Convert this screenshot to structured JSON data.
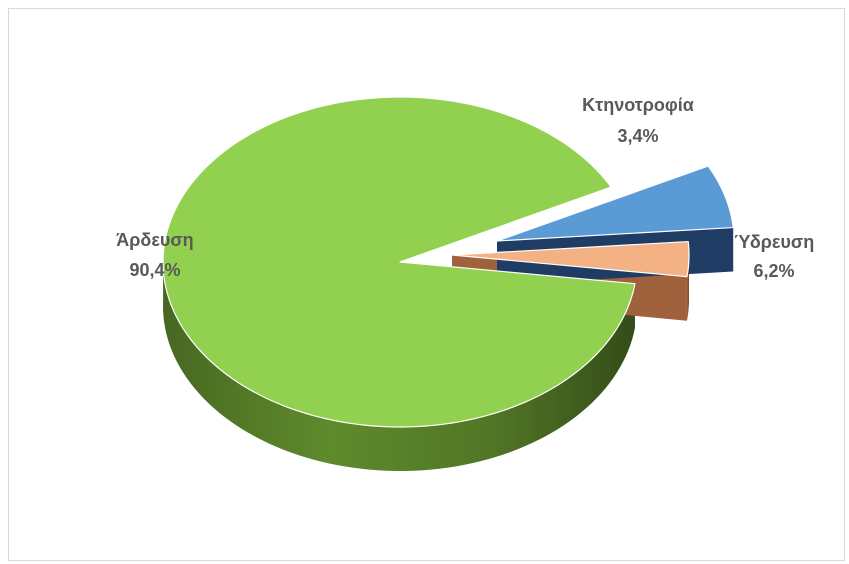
{
  "chart_data": {
    "type": "pie",
    "style": "3d-exploded",
    "slices": [
      {
        "label": "Άρδευση",
        "value": 90.4,
        "value_text": "90,4%",
        "color": "#92d050",
        "side_color": "#5f8a2c"
      },
      {
        "label": "Κτηνοτροφία",
        "value": 3.4,
        "value_text": "3,4%",
        "color": "#f4b183",
        "side_color": "#a0623c"
      },
      {
        "label": "Ύδρευση",
        "value": 6.2,
        "value_text": "6,2%",
        "color": "#5b9bd5",
        "side_color": "#1f3d64"
      }
    ],
    "legend": "none",
    "data_labels": "category name and percentage, outside slices"
  }
}
